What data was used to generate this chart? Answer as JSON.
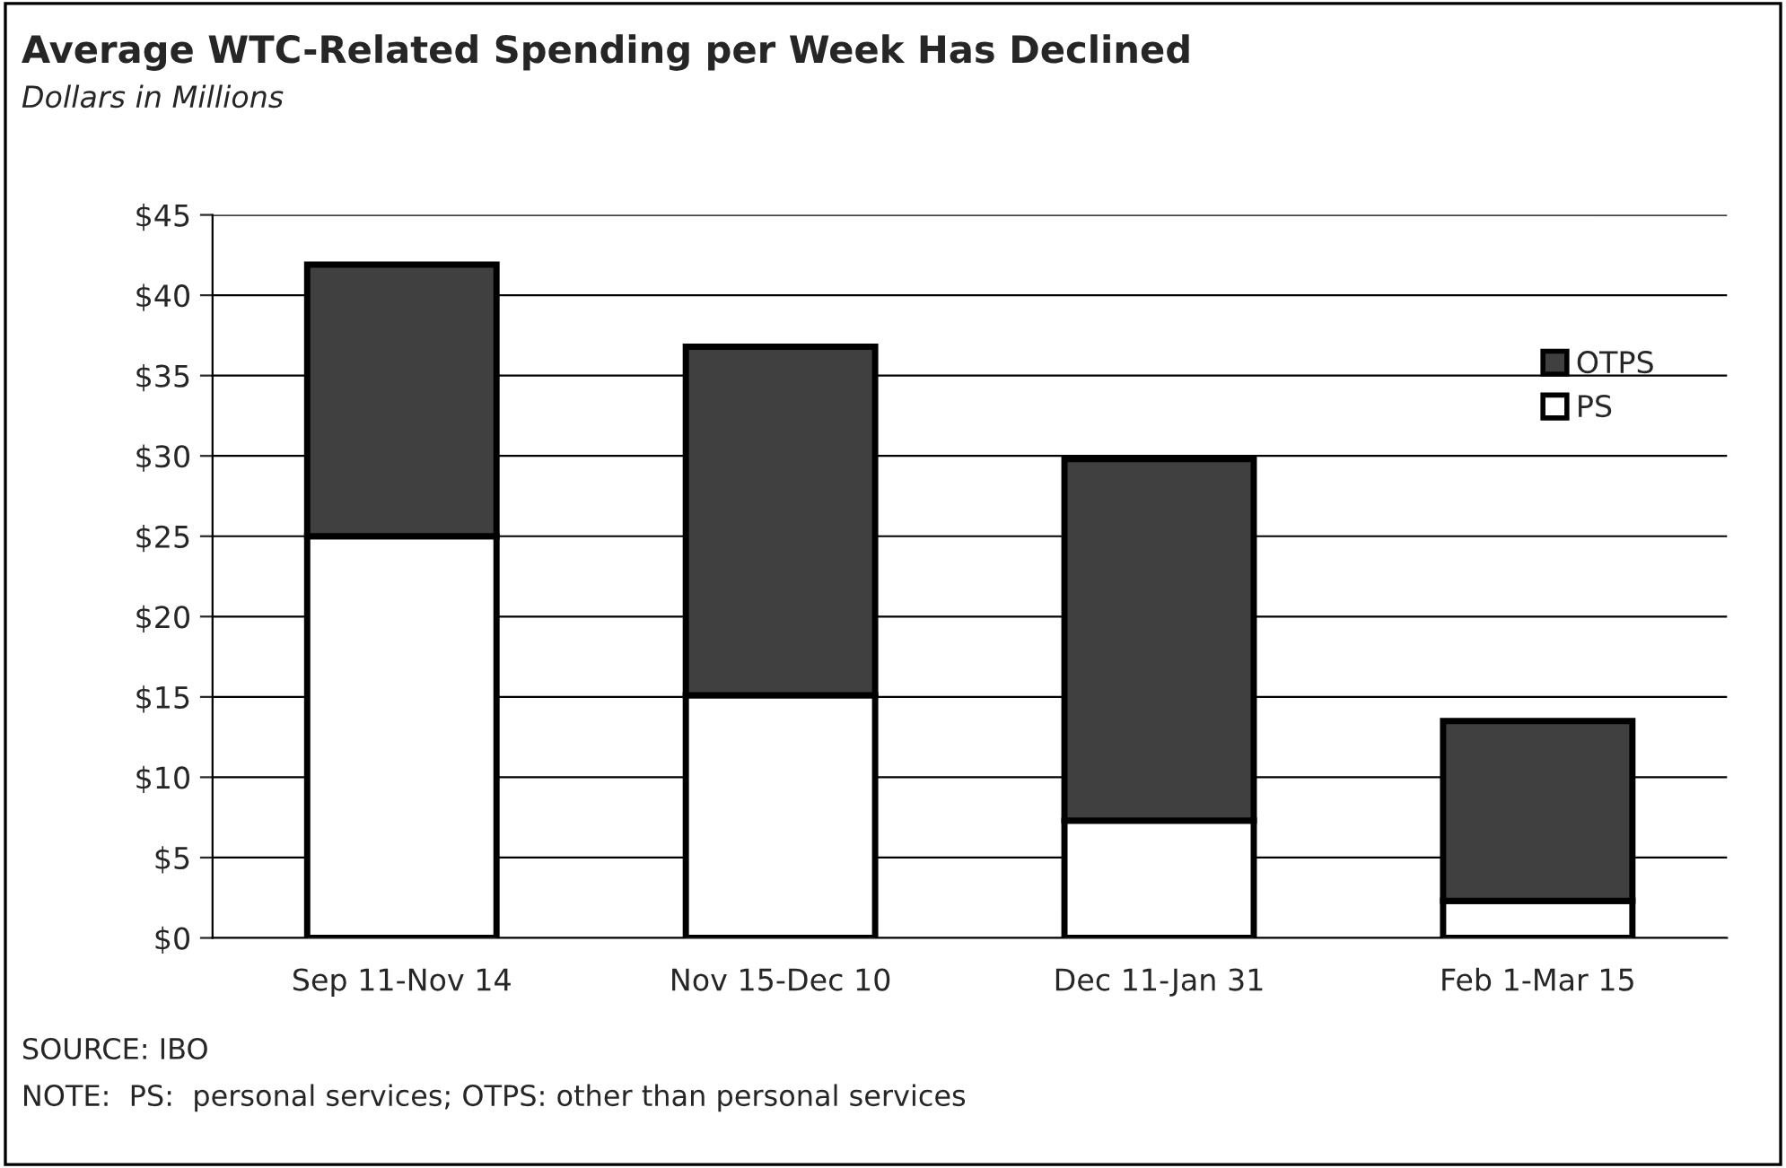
{
  "chart_data": {
    "type": "bar",
    "stacked": true,
    "title": "Average WTC-Related Spending per Week Has Declined",
    "subtitle": "Dollars in Millions",
    "categories": [
      "Sep 11-Nov 14",
      "Nov 15-Dec 10",
      "Dec 11-Jan 31",
      "Feb 1-Mar 15"
    ],
    "series": [
      {
        "name": "PS",
        "color": "#ffffff",
        "values": [
          25.0,
          15.1,
          7.3,
          2.3
        ]
      },
      {
        "name": "OTPS",
        "color": "#404040",
        "values": [
          16.9,
          21.7,
          22.5,
          11.2
        ]
      }
    ],
    "ylim": [
      0,
      45
    ],
    "yticks": [
      {
        "value": 0,
        "label": "$0"
      },
      {
        "value": 5,
        "label": "$5"
      },
      {
        "value": 10,
        "label": "$10"
      },
      {
        "value": 15,
        "label": "$15"
      },
      {
        "value": 20,
        "label": "$20"
      },
      {
        "value": 25,
        "label": "$25"
      },
      {
        "value": 30,
        "label": "$30"
      },
      {
        "value": 35,
        "label": "$35"
      },
      {
        "value": 40,
        "label": "$40"
      },
      {
        "value": 45,
        "label": "$45"
      }
    ],
    "grid": "y",
    "legend": "top right",
    "annotations": [
      "SOURCE: IBO",
      "NOTE:  PS:  personal services; OTPS: other than personal services"
    ]
  }
}
